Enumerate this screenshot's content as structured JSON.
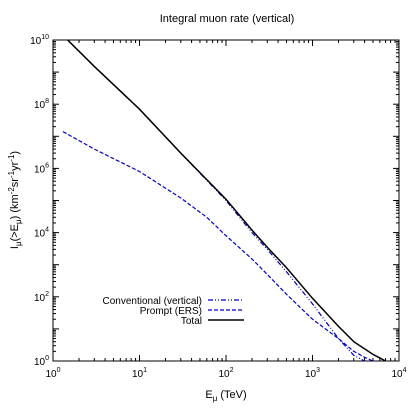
{
  "chart_data": {
    "type": "line",
    "title": "Integral muon rate (vertical)",
    "xlabel_main": "E",
    "xlabel_sub": "μ",
    "xlabel_tail": " (TeV)",
    "ylabel": {
      "p1": "I",
      "p1_sub": "μ",
      "p2": "(>E",
      "p2_sub": "μ",
      "p3": ") (km",
      "p3_sup": "-2",
      "p4": "sr",
      "p4_sup": "-1",
      "p5": "yr",
      "p5_sup": "-1",
      "p6": ")"
    },
    "x_scale": "log",
    "y_scale": "log",
    "xlim": [
      1,
      10000
    ],
    "ylim": [
      1,
      10000000000
    ],
    "x_ticks": [
      {
        "base": "10",
        "exp": "0"
      },
      {
        "base": "10",
        "exp": "1"
      },
      {
        "base": "10",
        "exp": "2"
      },
      {
        "base": "10",
        "exp": "3"
      },
      {
        "base": "10",
        "exp": "4"
      }
    ],
    "y_ticks": [
      {
        "base": "10",
        "exp": "0"
      },
      {
        "base": "10",
        "exp": "2"
      },
      {
        "base": "10",
        "exp": "4"
      },
      {
        "base": "10",
        "exp": "6"
      },
      {
        "base": "10",
        "exp": "8"
      },
      {
        "base": "10",
        "exp": "10"
      }
    ],
    "legend_position": "bottom-left",
    "series": [
      {
        "name": "Conventional (vertical)",
        "style": "dash-dot-dot",
        "color": "#0000cc",
        "x": [
          1.3,
          3,
          10,
          30,
          100,
          200,
          300,
          500,
          1000,
          2000,
          3000,
          4000
        ],
        "y": [
          14000000000,
          1500000000,
          70000000,
          3000000,
          100000,
          10000,
          3000,
          600,
          60,
          5,
          1.5,
          1
        ]
      },
      {
        "name": "Prompt (ERS)",
        "style": "dashed",
        "color": "#0000cc",
        "x": [
          1.3,
          3,
          10,
          30,
          60,
          100,
          200,
          300,
          500,
          1000,
          2000,
          3000,
          4000,
          5000
        ],
        "y": [
          14000000,
          4000000,
          800000,
          120000,
          30000,
          8000,
          1500,
          500,
          120,
          20,
          5,
          2,
          1.3,
          1
        ]
      },
      {
        "name": "Total",
        "style": "solid",
        "color": "#000000",
        "x": [
          1.3,
          3,
          10,
          30,
          100,
          200,
          300,
          500,
          1000,
          2000,
          3000,
          5000,
          7000
        ],
        "y": [
          14000000000,
          1500000000,
          70000000,
          3000000,
          110000,
          12000,
          3500,
          800,
          90,
          12,
          4,
          1.6,
          1
        ]
      }
    ]
  }
}
